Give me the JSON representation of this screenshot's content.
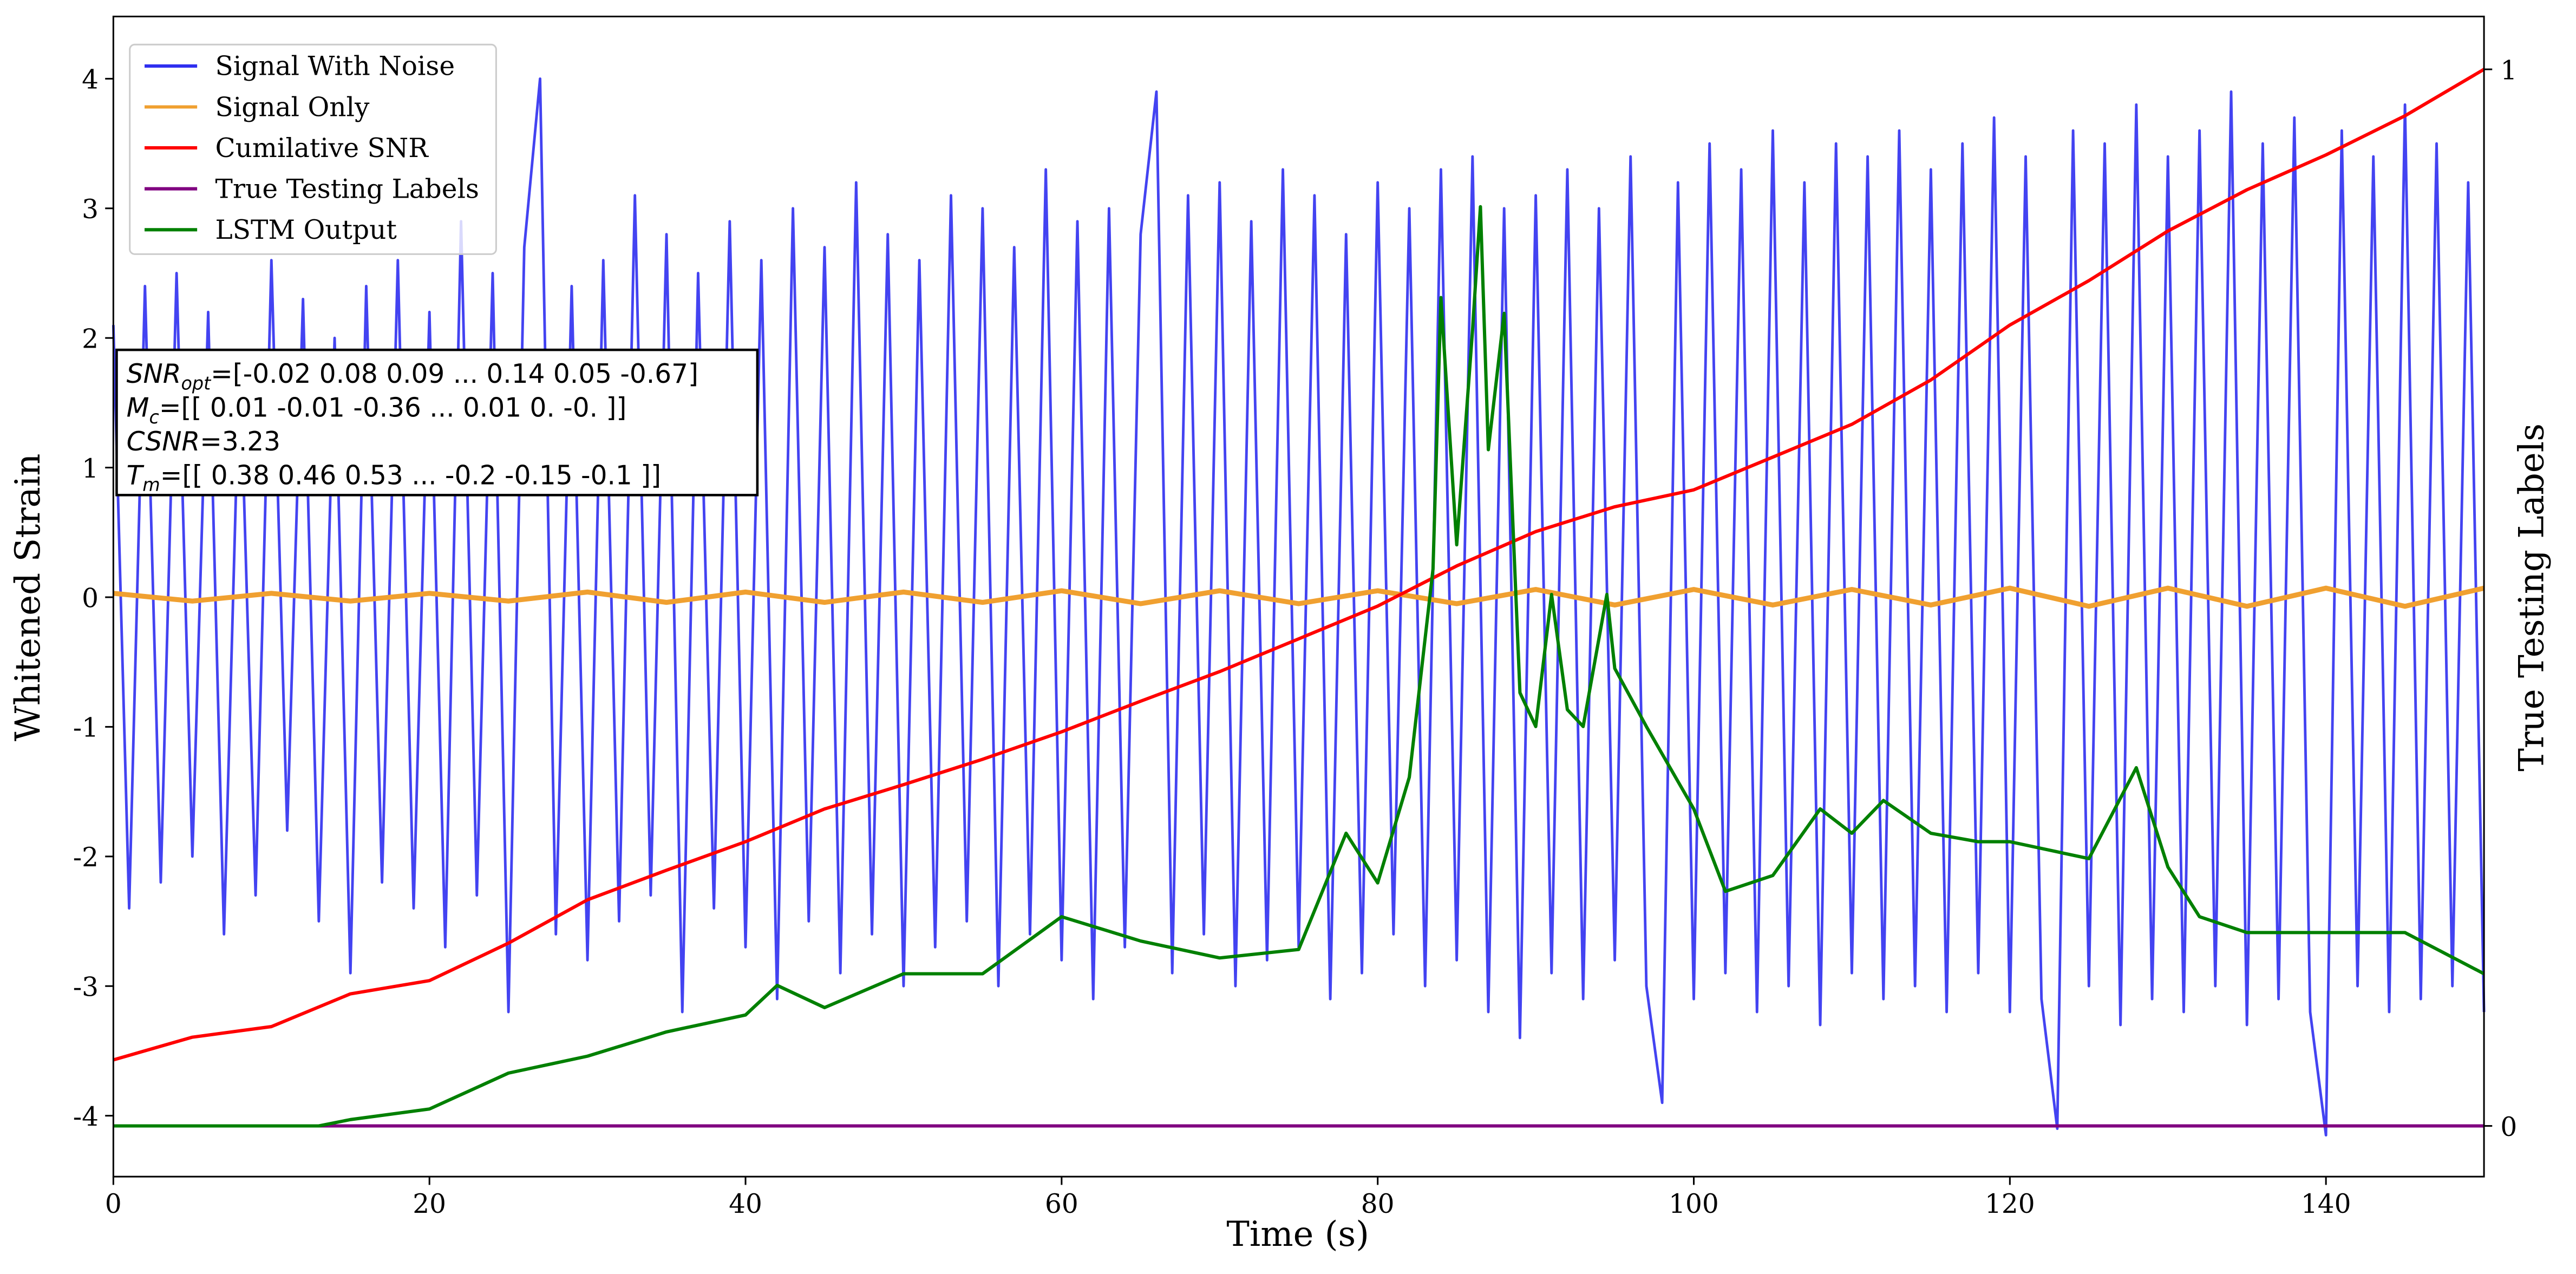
{
  "chart_data": {
    "type": "line",
    "xlabel": "Time (s)",
    "ylabel": "Whitened Strain",
    "y2label": "True Testing Labels",
    "xlim": [
      0,
      150
    ],
    "ylim": [
      -4.47,
      4.48
    ],
    "y2lim": [
      -0.048,
      1.05
    ],
    "xticks": [
      0,
      20,
      40,
      60,
      80,
      100,
      120,
      140
    ],
    "yticks": [
      -4,
      -3,
      -2,
      -1,
      0,
      1,
      2,
      3,
      4
    ],
    "y2ticks": [
      0,
      1
    ],
    "legend": "upper left",
    "annotation": [
      {
        "italic": "SNR",
        "sub": "opt",
        "rest": "=[-0.02  0.08  0.09 ...  0.14  0.05 -0.67]"
      },
      {
        "italic": "M",
        "sub": "c",
        "rest": "=[[ 0.01 -0.01 -0.36 ...  0.01  0.   -0.  ]]"
      },
      {
        "italic": "CSNR",
        "rest": "=3.23"
      },
      {
        "italic": "T",
        "sub": "m",
        "rest": "=[[ 0.38  0.46  0.53 ... -0.2  -0.15 -0.1 ]]"
      }
    ],
    "series": [
      {
        "name": "Signal With Noise",
        "color": "#2f2ff0",
        "axis": "y",
        "x": [
          0,
          1,
          2,
          3,
          4,
          5,
          6,
          7,
          8,
          9,
          10,
          11,
          12,
          13,
          14,
          15,
          16,
          17,
          18,
          19,
          20,
          21,
          22,
          23,
          24,
          25,
          26,
          27,
          28,
          29,
          30,
          31,
          32,
          33,
          34,
          35,
          36,
          37,
          38,
          39,
          40,
          41,
          42,
          43,
          44,
          45,
          46,
          47,
          48,
          49,
          50,
          51,
          52,
          53,
          54,
          55,
          56,
          57,
          58,
          59,
          60,
          61,
          62,
          63,
          64,
          65,
          66,
          67,
          68,
          69,
          70,
          71,
          72,
          73,
          74,
          75,
          76,
          77,
          78,
          79,
          80,
          81,
          82,
          83,
          84,
          85,
          86,
          87,
          88,
          89,
          90,
          91,
          92,
          93,
          94,
          95,
          96,
          97,
          98,
          99,
          100,
          101,
          102,
          103,
          104,
          105,
          106,
          107,
          108,
          109,
          110,
          111,
          112,
          113,
          114,
          115,
          116,
          117,
          118,
          119,
          120,
          121,
          122,
          123,
          124,
          125,
          126,
          127,
          128,
          129,
          130,
          131,
          132,
          133,
          134,
          135,
          136,
          137,
          138,
          139,
          140,
          141,
          142,
          143,
          144,
          145,
          146,
          147,
          148,
          149,
          150
        ],
        "values": [
          2.1,
          -2.4,
          2.4,
          -2.2,
          2.5,
          -2.0,
          2.2,
          -2.6,
          1.9,
          -2.3,
          2.6,
          -1.8,
          2.3,
          -2.5,
          2.0,
          -2.9,
          2.4,
          -2.2,
          2.6,
          -2.4,
          2.2,
          -2.7,
          2.9,
          -2.3,
          2.5,
          -3.2,
          2.7,
          4.0,
          -2.6,
          2.4,
          -2.8,
          2.6,
          -2.5,
          3.1,
          -2.3,
          2.8,
          -3.2,
          2.5,
          -2.4,
          2.9,
          -2.7,
          2.6,
          -3.1,
          3.0,
          -2.5,
          2.7,
          -2.9,
          3.2,
          -2.6,
          2.8,
          -3.0,
          2.6,
          -2.7,
          3.1,
          -2.5,
          3.0,
          -3.0,
          2.7,
          -2.6,
          3.3,
          -2.8,
          2.9,
          -3.1,
          3.0,
          -2.7,
          2.8,
          3.9,
          -2.9,
          3.1,
          -2.6,
          3.2,
          -3.0,
          2.9,
          -2.8,
          3.3,
          -2.7,
          3.1,
          -3.1,
          2.8,
          -2.9,
          3.2,
          -2.6,
          3.0,
          -3.0,
          3.3,
          -2.8,
          3.4,
          -3.2,
          3.0,
          -3.4,
          3.1,
          -2.9,
          3.3,
          -3.1,
          3.0,
          -2.8,
          3.4,
          -3.0,
          -3.9,
          3.2,
          -3.1,
          3.5,
          -2.9,
          3.3,
          -3.2,
          3.6,
          -3.0,
          3.2,
          -3.3,
          3.5,
          -2.9,
          3.4,
          -3.1,
          3.6,
          -3.0,
          3.3,
          -3.2,
          3.5,
          -2.9,
          3.7,
          -3.2,
          3.4,
          -3.1,
          -4.1,
          3.6,
          -3.0,
          3.5,
          -3.3,
          3.8,
          -3.1,
          3.4,
          -3.2,
          3.6,
          -3.0,
          3.9,
          -3.3,
          3.5,
          -3.1,
          3.7,
          -3.2,
          -4.15,
          3.6,
          -3.0,
          3.4,
          -3.2,
          3.8,
          -3.1,
          3.5,
          -3.0,
          3.2,
          -3.2
        ]
      },
      {
        "name": "Signal Only",
        "color": "#f0a030",
        "axis": "y",
        "x": [
          0,
          5,
          10,
          15,
          20,
          25,
          30,
          35,
          40,
          45,
          50,
          55,
          60,
          65,
          70,
          75,
          80,
          85,
          90,
          95,
          100,
          105,
          110,
          115,
          120,
          125,
          130,
          135,
          140,
          145,
          150
        ],
        "values": [
          0.03,
          -0.03,
          0.03,
          -0.03,
          0.03,
          -0.03,
          0.04,
          -0.04,
          0.04,
          -0.04,
          0.04,
          -0.04,
          0.05,
          -0.05,
          0.05,
          -0.05,
          0.05,
          -0.05,
          0.06,
          -0.06,
          0.06,
          -0.06,
          0.06,
          -0.06,
          0.07,
          -0.07,
          0.07,
          -0.07,
          0.07,
          -0.07,
          0.07
        ]
      },
      {
        "name": "Cumilative SNR",
        "color": "#ff0000",
        "axis": "y2",
        "x": [
          0,
          5,
          10,
          15,
          20,
          25,
          30,
          35,
          40,
          45,
          50,
          55,
          60,
          65,
          70,
          75,
          80,
          85,
          90,
          95,
          100,
          105,
          110,
          115,
          120,
          125,
          130,
          135,
          140,
          145,
          150
        ],
        "values": [
          0.0625,
          0.084,
          0.094,
          0.125,
          0.1375,
          0.173,
          0.214,
          0.242,
          0.269,
          0.3,
          0.323,
          0.347,
          0.373,
          0.402,
          0.43,
          0.461,
          0.492,
          0.53,
          0.5625,
          0.586,
          0.602,
          0.633,
          0.664,
          0.706,
          0.758,
          0.8,
          0.847,
          0.886,
          0.919,
          0.956,
          1.0
        ]
      },
      {
        "name": "True Testing Labels",
        "color": "#800080",
        "axis": "y2",
        "x": [
          0,
          150
        ],
        "values": [
          0,
          0
        ]
      },
      {
        "name": "LSTM Output",
        "color": "#008000",
        "axis": "y2",
        "x": [
          0,
          13,
          15,
          20,
          25,
          30,
          35,
          40,
          42,
          45,
          50,
          55,
          60,
          65,
          70,
          75,
          78,
          80,
          82,
          83.5,
          84,
          85,
          86,
          86.5,
          87,
          88,
          89,
          90,
          91,
          92,
          93,
          94.5,
          95,
          97,
          100,
          102,
          105,
          108,
          110,
          112,
          115,
          118,
          120,
          125,
          128,
          130,
          132,
          135,
          140,
          145,
          150
        ],
        "values": [
          0,
          0,
          0.006,
          0.016,
          0.05,
          0.066,
          0.089,
          0.105,
          0.133,
          0.112,
          0.144,
          0.144,
          0.198,
          0.175,
          0.159,
          0.167,
          0.277,
          0.23,
          0.33,
          0.527,
          0.784,
          0.55,
          0.753,
          0.87,
          0.64,
          0.769,
          0.41,
          0.378,
          0.503,
          0.394,
          0.378,
          0.503,
          0.433,
          0.378,
          0.3,
          0.222,
          0.237,
          0.3,
          0.277,
          0.308,
          0.277,
          0.269,
          0.269,
          0.253,
          0.339,
          0.245,
          0.198,
          0.183,
          0.183,
          0.183,
          0.144
        ]
      }
    ]
  }
}
